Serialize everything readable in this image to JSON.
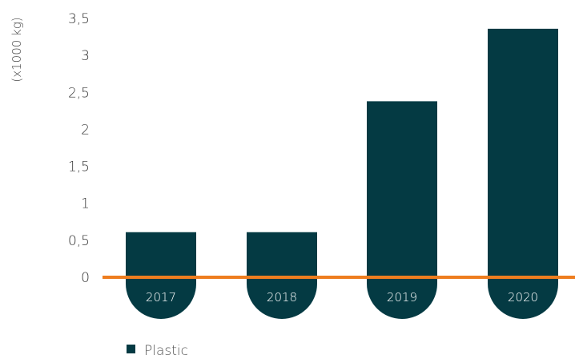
{
  "chart_data": {
    "type": "bar",
    "categories": [
      "2017",
      "2018",
      "2019",
      "2020"
    ],
    "series": [
      {
        "name": "Plastic",
        "values": [
          0.61,
          0.61,
          2.38,
          3.36
        ],
        "color": "#043a43"
      }
    ],
    "ylabel": "(x1000 kg)",
    "xlabel": "",
    "title": "",
    "ylim": [
      0,
      3.5
    ],
    "yticks": [
      "0",
      "0,5",
      "1",
      "1,5",
      "2",
      "2,5",
      "3",
      "3,5"
    ],
    "baseline_color": "#ee7d1f",
    "grid": false,
    "legend_position": "bottom-left"
  }
}
